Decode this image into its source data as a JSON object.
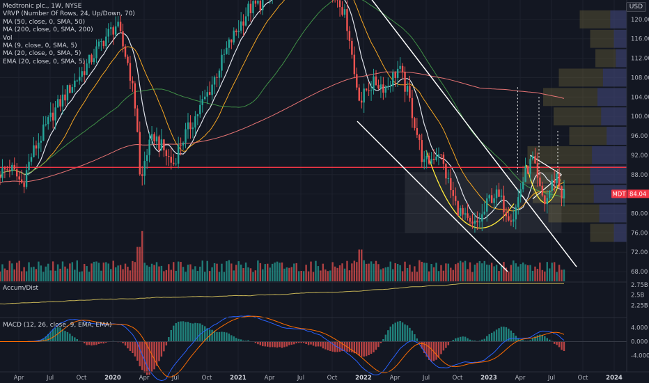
{
  "legend": {
    "title": "Medtronic plc., 1W, NYSE",
    "lines": [
      "VRVP (Number Of Rows, 24, Up/Down, 70)",
      "MA (50, close, 0, SMA, 50)",
      "MA (200, close, 0, SMA, 200)",
      "Vol",
      "MA (9, close, 0, SMA, 5)",
      "MA (20, close, 0, SMA, 5)",
      "EMA (20, close, 0, SMA, 5)"
    ]
  },
  "currency": "USD",
  "accum_label": "Accum/Dist",
  "macd_label": "MACD (12, 26, close, 9, EMA, EMA)",
  "chart_data": {
    "type": "line",
    "symbol": "MDT",
    "last_price": 84.04,
    "last_price_label": "84.04",
    "price_axis": {
      "range": [
        66,
        124
      ],
      "ticks": [
        68,
        72,
        76,
        80,
        84,
        88,
        92,
        96,
        100,
        104,
        108,
        112,
        116,
        120
      ],
      "tick_labels": [
        "68.00",
        "72.00",
        "76.00",
        "80.00",
        "84.00",
        "88.00",
        "92.00",
        "96.00",
        "100.00",
        "104.00",
        "108.00",
        "112.00",
        "116.00",
        "120.00"
      ]
    },
    "accum_axis": {
      "range": [
        2.12,
        2.8
      ],
      "ticks": [
        2.25,
        2.5,
        2.75
      ],
      "tick_labels": [
        "2.25B",
        "2.5B",
        "2.75B"
      ]
    },
    "macd_axis": {
      "range": [
        -5.5,
        6.5
      ],
      "ticks": [
        -4,
        0,
        4
      ],
      "tick_labels": [
        "-4.000",
        "0.000",
        "4.000"
      ]
    },
    "x_axis": {
      "range": [
        2019.1,
        2024.1
      ],
      "ticks": [
        {
          "t": 2019.25,
          "label": "Apr"
        },
        {
          "t": 2019.5,
          "label": "Jul"
        },
        {
          "t": 2019.75,
          "label": "Oct"
        },
        {
          "t": 2020.0,
          "label": "2020",
          "bold": true
        },
        {
          "t": 2020.25,
          "label": "Apr"
        },
        {
          "t": 2020.5,
          "label": "Jul"
        },
        {
          "t": 2020.75,
          "label": "Oct"
        },
        {
          "t": 2021.0,
          "label": "2021",
          "bold": true
        },
        {
          "t": 2021.25,
          "label": "Apr"
        },
        {
          "t": 2021.5,
          "label": "Jul"
        },
        {
          "t": 2021.75,
          "label": "Oct"
        },
        {
          "t": 2022.0,
          "label": "2022",
          "bold": true
        },
        {
          "t": 2022.25,
          "label": "Apr"
        },
        {
          "t": 2022.5,
          "label": "Jul"
        },
        {
          "t": 2022.75,
          "label": "Oct"
        },
        {
          "t": 2023.0,
          "label": "2023",
          "bold": true
        },
        {
          "t": 2023.25,
          "label": "Apr"
        },
        {
          "t": 2023.5,
          "label": "Jul"
        },
        {
          "t": 2023.75,
          "label": "Oct"
        },
        {
          "t": 2024.0,
          "label": "2024",
          "bold": true
        }
      ]
    },
    "price_path": [
      [
        2019.1,
        88
      ],
      [
        2019.2,
        89.5
      ],
      [
        2019.3,
        86
      ],
      [
        2019.37,
        92
      ],
      [
        2019.45,
        96
      ],
      [
        2019.55,
        101
      ],
      [
        2019.68,
        106
      ],
      [
        2019.8,
        110
      ],
      [
        2019.95,
        116
      ],
      [
        2020.05,
        119
      ],
      [
        2020.15,
        110
      ],
      [
        2020.21,
        100
      ],
      [
        2020.24,
        85
      ],
      [
        2020.28,
        92
      ],
      [
        2020.35,
        96
      ],
      [
        2020.45,
        92
      ],
      [
        2020.5,
        90
      ],
      [
        2020.55,
        94
      ],
      [
        2020.7,
        101
      ],
      [
        2020.8,
        106
      ],
      [
        2020.95,
        115
      ],
      [
        2021.1,
        122
      ],
      [
        2021.25,
        124
      ],
      [
        2021.35,
        128
      ],
      [
        2021.45,
        130
      ],
      [
        2021.6,
        131
      ],
      [
        2021.75,
        126
      ],
      [
        2021.83,
        124
      ],
      [
        2021.9,
        118
      ],
      [
        2021.95,
        108
      ],
      [
        2022.0,
        103
      ],
      [
        2022.05,
        106
      ],
      [
        2022.12,
        107
      ],
      [
        2022.2,
        106
      ],
      [
        2022.3,
        110
      ],
      [
        2022.38,
        104
      ],
      [
        2022.45,
        96
      ],
      [
        2022.5,
        90
      ],
      [
        2022.55,
        91
      ],
      [
        2022.62,
        93
      ],
      [
        2022.7,
        86
      ],
      [
        2022.75,
        82
      ],
      [
        2022.82,
        79
      ],
      [
        2022.88,
        77
      ],
      [
        2022.93,
        78
      ],
      [
        2022.98,
        80
      ],
      [
        2023.02,
        83
      ],
      [
        2023.07,
        84
      ],
      [
        2023.13,
        82
      ],
      [
        2023.17,
        80
      ],
      [
        2023.22,
        79.5
      ],
      [
        2023.27,
        85
      ],
      [
        2023.32,
        89
      ],
      [
        2023.37,
        91
      ],
      [
        2023.42,
        85
      ],
      [
        2023.47,
        82
      ],
      [
        2023.52,
        86
      ],
      [
        2023.56,
        88
      ],
      [
        2023.6,
        84
      ]
    ],
    "annotations": {
      "resistance_level": 89.5,
      "channel_upper": [
        [
          2021.95,
          128
        ],
        [
          2023.7,
          69
        ]
      ],
      "channel_lower": [
        [
          2021.95,
          99
        ],
        [
          2023.15,
          68
        ]
      ],
      "volume_profile_levels": [
        [
          120,
          0.45
        ],
        [
          116,
          0.35
        ],
        [
          112,
          0.3
        ],
        [
          108,
          0.65
        ],
        [
          104,
          0.8
        ],
        [
          100,
          0.7
        ],
        [
          96,
          0.55
        ],
        [
          92,
          0.95
        ],
        [
          88,
          1.0
        ],
        [
          84,
          0.9
        ],
        [
          80,
          0.75
        ],
        [
          76,
          0.35
        ]
      ]
    }
  }
}
